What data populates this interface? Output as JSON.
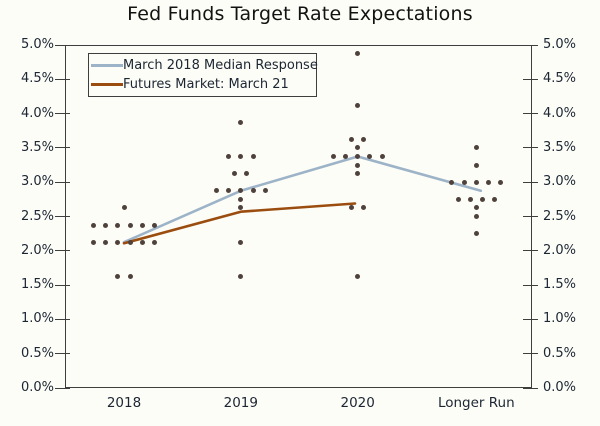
{
  "title": "Fed Funds Target Rate Expectations",
  "legend": {
    "items": [
      {
        "label": "March 2018 Median Response",
        "color": "#9db3c8"
      },
      {
        "label": "Futures Market: March 21",
        "color": "#9b4d0f"
      }
    ]
  },
  "chart_data": {
    "type": "scatter",
    "title": "Fed Funds Target Rate Expectations",
    "categories": [
      "2018",
      "2019",
      "2020",
      "Longer Run"
    ],
    "y_axis": {
      "min": 0,
      "max": 5,
      "tick_step": 0.5,
      "tick_labels": [
        "0.0%",
        "0.5%",
        "1.0%",
        "1.5%",
        "2.0%",
        "2.5%",
        "3.0%",
        "3.5%",
        "4.0%",
        "4.5%",
        "5.0%"
      ],
      "dual_axis": true,
      "grid": false
    },
    "dot_color": "#4f423c",
    "dot_groups": [
      {
        "category": "2018",
        "dots": [
          {
            "value": 2.625,
            "count": 1
          },
          {
            "value": 2.375,
            "count": 6
          },
          {
            "value": 2.125,
            "count": 6
          },
          {
            "value": 1.625,
            "count": 2
          }
        ]
      },
      {
        "category": "2019",
        "dots": [
          {
            "value": 3.875,
            "count": 1
          },
          {
            "value": 3.375,
            "count": 3
          },
          {
            "value": 3.125,
            "count": 2
          },
          {
            "value": 2.875,
            "count": 5
          },
          {
            "value": 2.75,
            "count": 1
          },
          {
            "value": 2.625,
            "count": 1
          },
          {
            "value": 2.125,
            "count": 1
          },
          {
            "value": 1.625,
            "count": 1
          }
        ]
      },
      {
        "category": "2020",
        "dots": [
          {
            "value": 4.875,
            "count": 1
          },
          {
            "value": 4.125,
            "count": 1
          },
          {
            "value": 3.625,
            "count": 2
          },
          {
            "value": 3.5,
            "count": 1
          },
          {
            "value": 3.375,
            "count": 5
          },
          {
            "value": 3.25,
            "count": 1
          },
          {
            "value": 3.125,
            "count": 1
          },
          {
            "value": 2.625,
            "count": 2
          },
          {
            "value": 1.625,
            "count": 1
          }
        ]
      },
      {
        "category": "Longer Run",
        "dots": [
          {
            "value": 3.5,
            "count": 1
          },
          {
            "value": 3.25,
            "count": 1
          },
          {
            "value": 3.0,
            "count": 5
          },
          {
            "value": 2.75,
            "count": 4
          },
          {
            "value": 2.625,
            "count": 1
          },
          {
            "value": 2.5,
            "count": 1
          },
          {
            "value": 2.25,
            "count": 1
          }
        ]
      }
    ],
    "series": [
      {
        "name": "March 2018 Median Response",
        "color": "#9db3c8",
        "categories": [
          "2018",
          "2019",
          "2020",
          "Longer Run"
        ],
        "values": [
          2.125,
          2.875,
          3.375,
          2.875
        ]
      },
      {
        "name": "Futures Market: March 21",
        "color": "#9b4d0f",
        "categories": [
          "2018",
          "2019",
          "2020"
        ],
        "values": [
          2.11,
          2.57,
          2.69
        ]
      }
    ],
    "legend_position": "top-left"
  }
}
